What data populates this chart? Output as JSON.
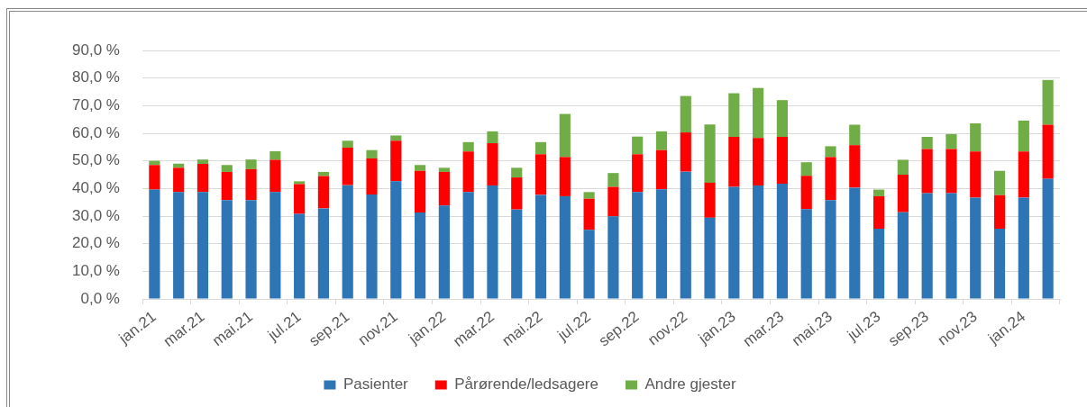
{
  "chart_data": {
    "type": "bar",
    "stacked": true,
    "categories": [
      "jan.21",
      null,
      "mar.21",
      null,
      "mai.21",
      null,
      "jul.21",
      null,
      "sep.21",
      null,
      "nov.21",
      null,
      "jan.22",
      null,
      "mar.22",
      null,
      "mai.22",
      null,
      "jul.22",
      null,
      "sep.22",
      null,
      "nov.22",
      null,
      "jan.23",
      null,
      "mar.23",
      null,
      "mai.23",
      null,
      "jul.23",
      null,
      "sep.23",
      null,
      "nov.23",
      null,
      "jan.24",
      null
    ],
    "series": [
      {
        "name": "Pasienter",
        "color": "#2e75b6",
        "values": [
          39.6,
          38.7,
          38.7,
          35.8,
          35.8,
          38.7,
          30.8,
          32.8,
          41.2,
          37.8,
          42.6,
          31.3,
          33.8,
          38.7,
          41.1,
          32.4,
          37.7,
          37.2,
          25.0,
          29.9,
          38.7,
          39.7,
          46.1,
          29.4,
          40.6,
          41.1,
          41.7,
          32.5,
          35.8,
          40.3,
          25.4,
          31.4,
          38.3,
          38.3,
          36.7,
          25.4,
          36.7,
          43.5
        ]
      },
      {
        "name": "Pårørende/ledsagere",
        "color": "#ff0000",
        "values": [
          8.9,
          8.8,
          10.2,
          10.2,
          11.2,
          11.7,
          10.8,
          11.7,
          13.6,
          13.1,
          14.7,
          15.1,
          12.2,
          14.7,
          15.3,
          11.6,
          14.7,
          14.2,
          11.3,
          10.7,
          13.7,
          14.2,
          14.2,
          12.7,
          18.1,
          17.2,
          17.0,
          12.1,
          15.6,
          15.4,
          11.8,
          13.6,
          16.0,
          16.0,
          16.7,
          12.2,
          16.7,
          19.6
        ]
      },
      {
        "name": "Andre gjester",
        "color": "#70ad47",
        "values": [
          1.5,
          1.5,
          1.6,
          2.5,
          3.5,
          3.1,
          1.0,
          1.5,
          2.5,
          3.0,
          1.9,
          2.1,
          1.5,
          3.4,
          4.3,
          3.5,
          4.4,
          15.6,
          2.4,
          5.0,
          6.4,
          6.8,
          13.2,
          21.1,
          15.8,
          18.1,
          13.3,
          4.9,
          3.9,
          7.4,
          2.4,
          5.4,
          4.4,
          5.4,
          10.2,
          8.8,
          11.2,
          16.2
        ]
      }
    ],
    "ylim": [
      0,
      90
    ],
    "yticks": [
      {
        "value": 0,
        "label": "0,0 %"
      },
      {
        "value": 10,
        "label": "10,0 %"
      },
      {
        "value": 20,
        "label": "20,0 %"
      },
      {
        "value": 30,
        "label": "30,0 %"
      },
      {
        "value": 40,
        "label": "40,0 %"
      },
      {
        "value": 50,
        "label": "50,0 %"
      },
      {
        "value": 60,
        "label": "60,0 %"
      },
      {
        "value": 70,
        "label": "70,0 %"
      },
      {
        "value": 80,
        "label": "80,0 %"
      },
      {
        "value": 90,
        "label": "90,0 %"
      }
    ],
    "grid": "y",
    "legend": "bottom"
  }
}
